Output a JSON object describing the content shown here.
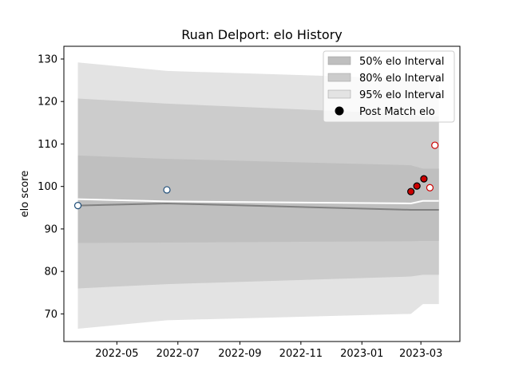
{
  "chart_data": {
    "type": "line",
    "title": "Ruan Delport: elo History",
    "xlabel": "",
    "ylabel": "elo score",
    "xlim": [
      "2022-03-09",
      "2023-04-09"
    ],
    "ylim": [
      63.5,
      133
    ],
    "x_ticks": [
      "2022-05",
      "2022-07",
      "2022-09",
      "2022-11",
      "2023-01",
      "2023-03"
    ],
    "y_ticks": [
      70,
      80,
      90,
      100,
      110,
      120,
      130
    ],
    "grid": false,
    "legend_position": "top-right",
    "legend": [
      {
        "label": "50% elo Interval",
        "kind": "band50"
      },
      {
        "label": "80% elo Interval",
        "kind": "band80"
      },
      {
        "label": "95% elo Interval",
        "kind": "band95"
      },
      {
        "label": "Post Match elo",
        "kind": "marker"
      }
    ],
    "bands": {
      "x": [
        "2022-03-23",
        "2022-06-20",
        "2023-02-19",
        "2023-03-03",
        "2023-03-19"
      ],
      "mean": [
        95.5,
        96.0,
        94.5,
        94.5,
        94.5
      ],
      "upper_line": [
        97.0,
        96.5,
        96.0,
        96.6,
        96.6
      ],
      "p50_low": [
        86.7,
        86.8,
        87.1,
        87.2,
        87.2
      ],
      "p50_high": [
        107.3,
        106.5,
        105.0,
        104.2,
        104.2
      ],
      "p80_low": [
        76.0,
        77.0,
        78.8,
        79.2,
        79.2
      ],
      "p80_high": [
        120.7,
        119.5,
        117.0,
        116.5,
        116.5
      ],
      "p95_low": [
        66.5,
        68.5,
        70.0,
        72.3,
        72.3
      ],
      "p95_high": [
        129.2,
        127.2,
        125.4,
        124.8,
        124.8
      ]
    },
    "series": [
      {
        "name": "Post Match elo",
        "points": [
          {
            "x": "2022-03-23",
            "y": 95.5,
            "style": "blue_open"
          },
          {
            "x": "2022-06-20",
            "y": 99.2,
            "style": "blue_open"
          },
          {
            "x": "2023-02-19",
            "y": 98.8,
            "style": "red_filled"
          },
          {
            "x": "2023-02-25",
            "y": 100.1,
            "style": "red_filled"
          },
          {
            "x": "2023-03-04",
            "y": 101.8,
            "style": "red_filled"
          },
          {
            "x": "2023-03-10",
            "y": 99.7,
            "style": "red_open"
          },
          {
            "x": "2023-03-15",
            "y": 109.7,
            "style": "red_open"
          }
        ]
      }
    ],
    "colors": {
      "band95": "#e3e3e3",
      "band80": "#cccccc",
      "band50": "#bfbfbf",
      "mean_line": "#808080",
      "upper_line": "#ffffff",
      "marker_blue_edge": "#1f4e79",
      "marker_red_edge": "#cc0000",
      "marker_red_fill": "#cc0000"
    }
  }
}
